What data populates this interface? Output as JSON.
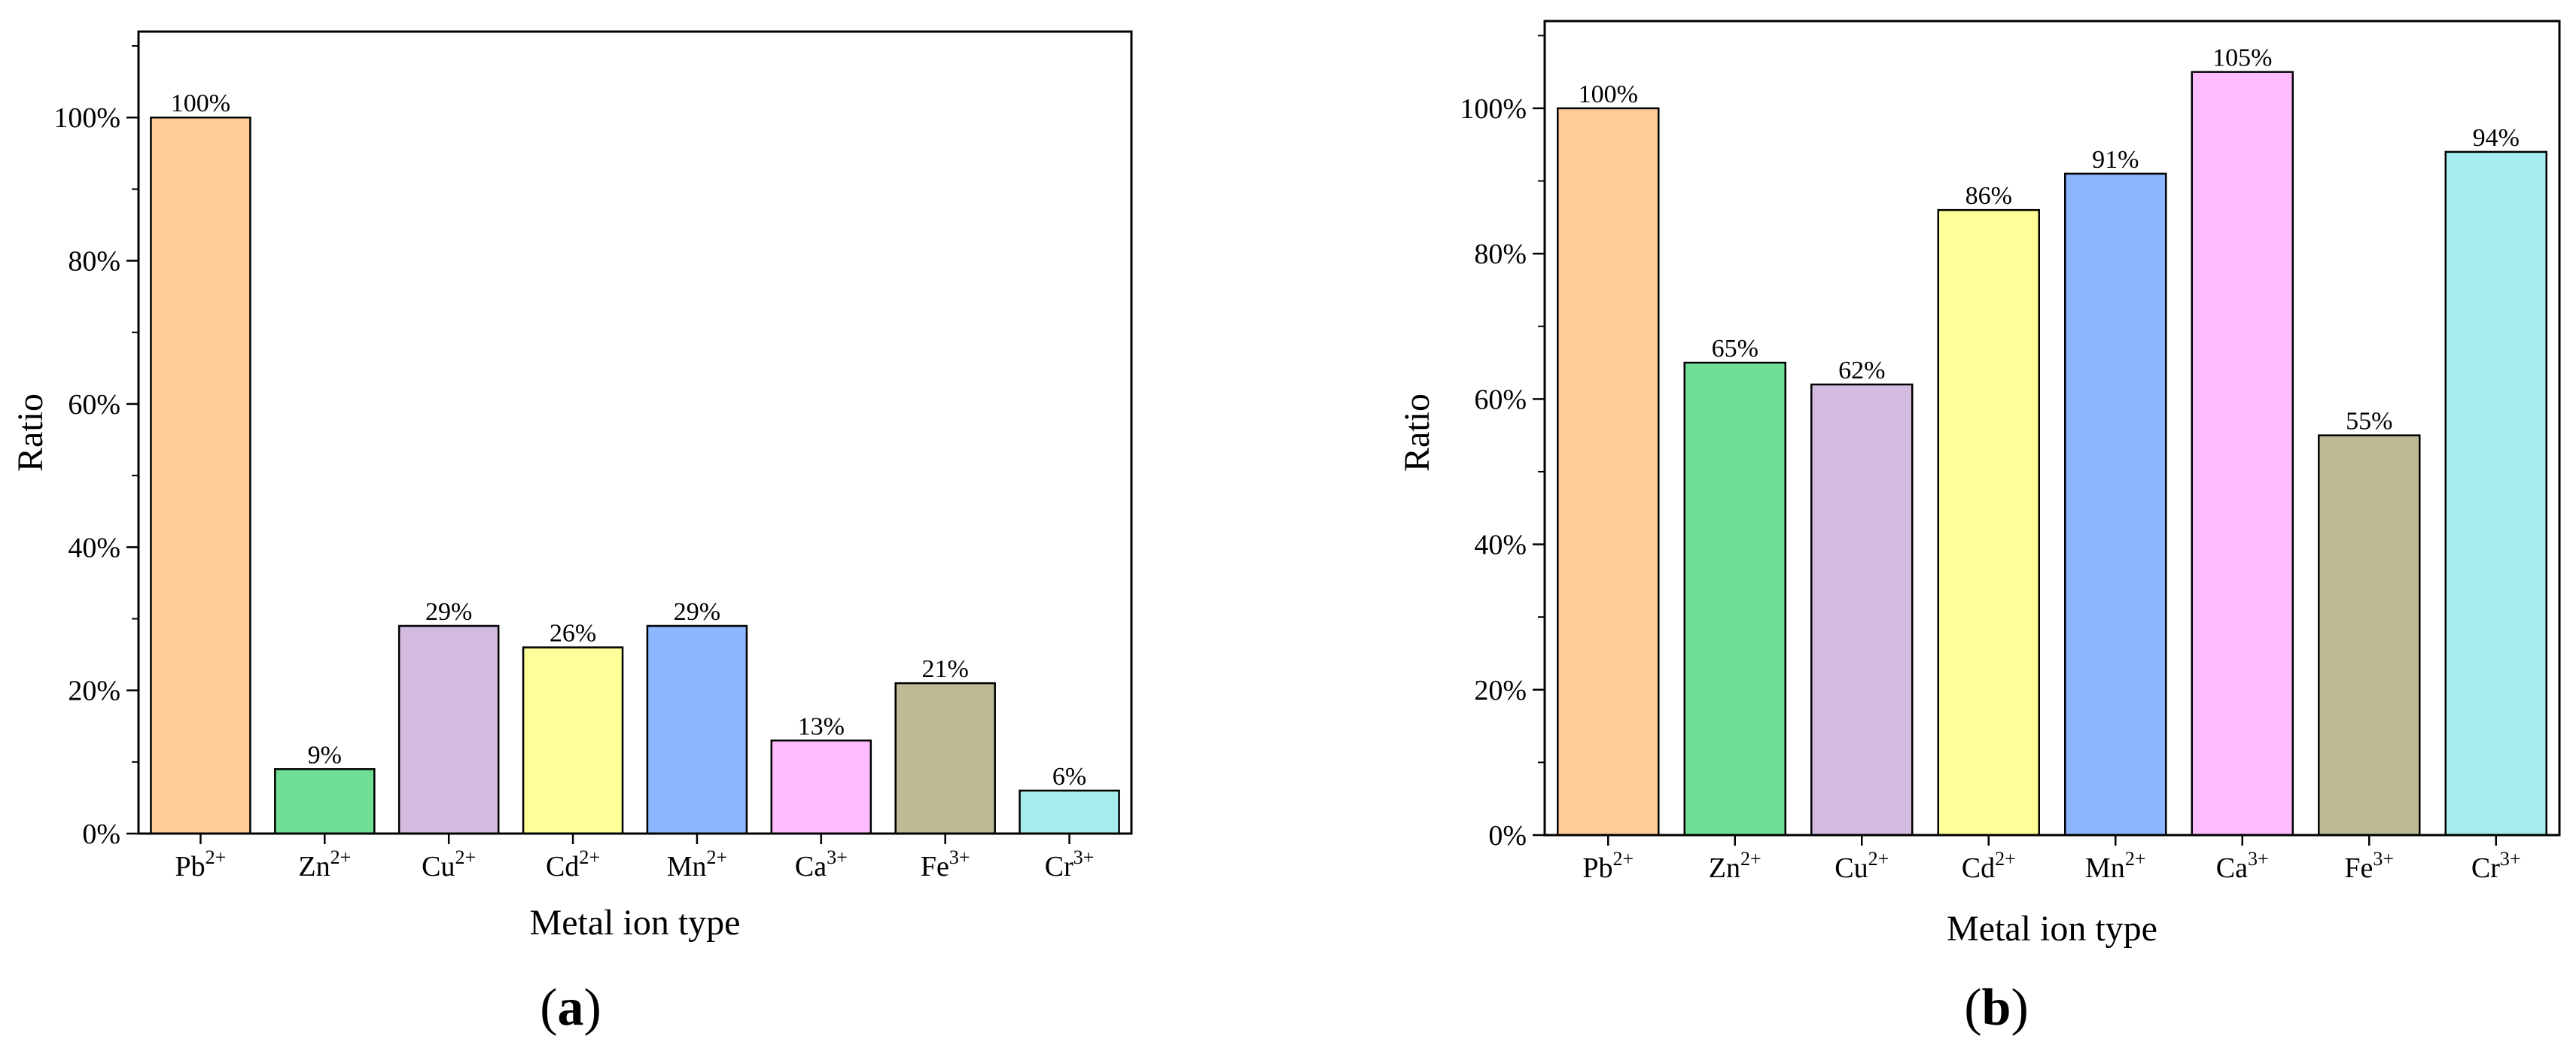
{
  "chart_data": [
    {
      "type": "bar",
      "panel_label": "a",
      "xlabel": "Metal ion type",
      "ylabel": "Ratio",
      "ylim": [
        0,
        112
      ],
      "yticks": [
        0,
        20,
        40,
        60,
        80,
        100
      ],
      "ytick_labels": [
        "0%",
        "20%",
        "40%",
        "60%",
        "80%",
        "100%"
      ],
      "categories": [
        {
          "base": "Pb",
          "sup": "2+"
        },
        {
          "base": "Zn",
          "sup": "2+"
        },
        {
          "base": "Cu",
          "sup": "2+"
        },
        {
          "base": "Cd",
          "sup": "2+"
        },
        {
          "base": "Mn",
          "sup": "2+"
        },
        {
          "base": "Ca",
          "sup": "3+"
        },
        {
          "base": "Fe",
          "sup": "3+"
        },
        {
          "base": "Cr",
          "sup": "3+"
        }
      ],
      "values": [
        100,
        9,
        29,
        26,
        29,
        13,
        21,
        6
      ],
      "value_labels": [
        "100%",
        "9%",
        "29%",
        "26%",
        "29%",
        "13%",
        "21%",
        "6%"
      ],
      "colors": [
        "#FFCC99",
        "#70DE94",
        "#D4BCE0",
        "#FFFF99",
        "#8BB7FF",
        "#FFBBFF",
        "#BCBB96",
        "#A5EDEE"
      ],
      "grid": false,
      "legend": "none"
    },
    {
      "type": "bar",
      "panel_label": "b",
      "xlabel": "Metal ion type",
      "ylabel": "Ratio",
      "ylim": [
        0,
        112
      ],
      "yticks": [
        0,
        20,
        40,
        60,
        80,
        100
      ],
      "ytick_labels": [
        "0%",
        "20%",
        "40%",
        "60%",
        "80%",
        "100%"
      ],
      "categories": [
        {
          "base": "Pb",
          "sup": "2+"
        },
        {
          "base": "Zn",
          "sup": "2+"
        },
        {
          "base": "Cu",
          "sup": "2+"
        },
        {
          "base": "Cd",
          "sup": "2+"
        },
        {
          "base": "Mn",
          "sup": "2+"
        },
        {
          "base": "Ca",
          "sup": "3+"
        },
        {
          "base": "Fe",
          "sup": "3+"
        },
        {
          "base": "Cr",
          "sup": "3+"
        }
      ],
      "values": [
        100,
        65,
        62,
        86,
        91,
        105,
        55,
        94
      ],
      "value_labels": [
        "100%",
        "65%",
        "62%",
        "86%",
        "91%",
        "105%",
        "55%",
        "94%"
      ],
      "colors": [
        "#FFCC99",
        "#70DE94",
        "#D4BCE0",
        "#FFFF99",
        "#8BB7FF",
        "#FFBBFF",
        "#BCBB96",
        "#A5EDEE"
      ],
      "grid": false,
      "legend": "none"
    }
  ]
}
